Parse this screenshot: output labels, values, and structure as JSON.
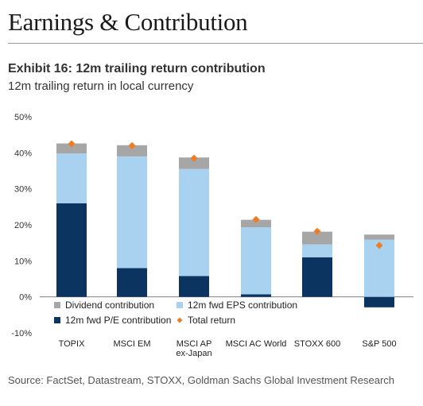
{
  "page": {
    "header_title": "Earnings & Contribution",
    "source": "Source: FactSet, Datastream, STOXX, Goldman Sachs Global Investment Research"
  },
  "chart_data": {
    "type": "bar",
    "stacked": true,
    "title": "Exhibit 16: 12m trailing return contribution",
    "subtitle": "12m trailing return in local currency",
    "categories": [
      [
        "TOPIX"
      ],
      [
        "MSCI EM"
      ],
      [
        "MSCI AP",
        "ex-Japan"
      ],
      [
        "MSCI AC World"
      ],
      [
        "STOXX 600"
      ],
      [
        "S&P 500"
      ]
    ],
    "ylim": [
      -10,
      50
    ],
    "yticks": [
      -10,
      0,
      10,
      20,
      30,
      40,
      50
    ],
    "ytick_labels": [
      "-10%",
      "0%",
      "10%",
      "20%",
      "30%",
      "40%",
      "50%"
    ],
    "grid": false,
    "series": [
      {
        "name": "12m fwd P/E contribution",
        "color": "#0b3560",
        "values": [
          26.0,
          8.0,
          5.8,
          0.7,
          11.0,
          -2.9
        ]
      },
      {
        "name": "12m fwd EPS contribution",
        "color": "#a9d1f0",
        "values": [
          13.8,
          31.0,
          29.7,
          18.6,
          3.6,
          15.9
        ]
      },
      {
        "name": "Dividend contribution",
        "color": "#a6a6a6",
        "values": [
          2.8,
          3.1,
          3.2,
          2.1,
          3.5,
          1.4
        ]
      }
    ],
    "total_return": {
      "name": "Total return",
      "color": "#f07c24",
      "values": [
        42.5,
        42.0,
        38.5,
        21.5,
        18.2,
        14.3
      ]
    },
    "legend": {
      "placement": "bottom-left",
      "items": [
        {
          "name": "Dividend contribution",
          "color": "#a6a6a6",
          "marker": "square"
        },
        {
          "name": "12m fwd EPS contribution",
          "color": "#a9d1f0",
          "marker": "square"
        },
        {
          "name": "12m fwd P/E contribution",
          "color": "#0b3560",
          "marker": "square"
        },
        {
          "name": "Total return",
          "color": "#f07c24",
          "marker": "diamond"
        }
      ]
    }
  }
}
